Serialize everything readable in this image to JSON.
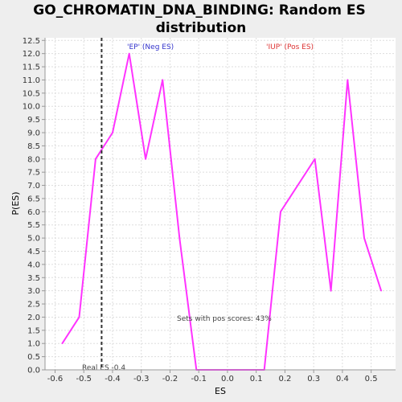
{
  "chart_data": {
    "type": "line",
    "title_lines": [
      "GO_CHROMATIN_DNA_BINDING: Random ES",
      "distribution"
    ],
    "xlabel": "ES",
    "ylabel": "P(ES)",
    "xlim": [
      -0.635,
      0.585
    ],
    "ylim": [
      0.0,
      12.6
    ],
    "x_ticks": [
      -0.6,
      -0.5,
      -0.4,
      -0.3,
      -0.2,
      -0.1,
      0.0,
      0.1,
      0.2,
      0.3,
      0.4,
      0.5
    ],
    "x_tick_labels": [
      "-0.6",
      "-0.5",
      "-0.4",
      "-0.3",
      "-0.2",
      "-0.1",
      "0.0",
      "0.1",
      "0.2",
      "0.3",
      "0.4",
      "0.5"
    ],
    "y_ticks": [
      0.0,
      0.5,
      1.0,
      1.5,
      2.0,
      2.5,
      3.0,
      3.5,
      4.0,
      4.5,
      5.0,
      5.5,
      6.0,
      6.5,
      7.0,
      7.5,
      8.0,
      8.5,
      9.0,
      9.5,
      10.0,
      10.5,
      11.0,
      11.5,
      12.0,
      12.5
    ],
    "y_tick_labels": [
      "0.0",
      "0.5",
      "1.0",
      "1.5",
      "2.0",
      "2.5",
      "3.0",
      "3.5",
      "4.0",
      "4.5",
      "5.0",
      "5.5",
      "6.0",
      "6.5",
      "7.0",
      "7.5",
      "8.0",
      "8.5",
      "9.0",
      "9.5",
      "10.0",
      "10.5",
      "11.0",
      "11.5",
      "12.0",
      "12.5"
    ],
    "grid": true,
    "series": [
      {
        "color": "#ff33ff",
        "x": [
          -0.575,
          -0.516,
          -0.459,
          -0.4,
          -0.342,
          -0.285,
          -0.226,
          -0.167,
          -0.108,
          -0.049,
          0.01,
          0.069,
          0.128,
          0.185,
          0.304,
          0.36,
          0.418,
          0.476,
          0.535
        ],
        "y": [
          1.0,
          2.0,
          8.0,
          9.0,
          12.0,
          8.0,
          11.0,
          5.0,
          0.0,
          0.0,
          0.0,
          0.0,
          0.0,
          6.0,
          8.0,
          3.0,
          11.0,
          5.0,
          3.0
        ]
      }
    ],
    "real_es": {
      "value": -0.438,
      "label": "Real ES -0.4"
    },
    "annotations": {
      "neg_label": "'EP' (Neg ES)",
      "pos_label": "'IUP' (Pos ES)",
      "pos_scores": "Sets with pos scores: 43%"
    },
    "colors": {
      "neg_label": "#3333cc",
      "pos_label": "#dd3333",
      "grid": "#dddddd",
      "axis": "#999999"
    }
  }
}
